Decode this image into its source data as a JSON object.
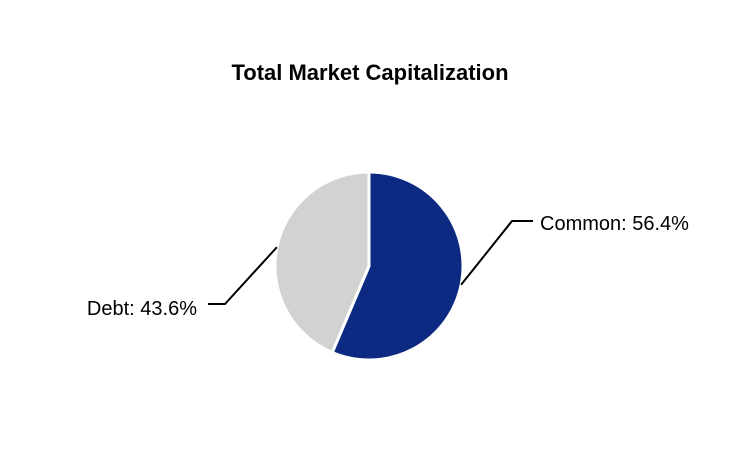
{
  "page": {
    "background_color": "#ffffff"
  },
  "chart_data": {
    "type": "pie",
    "title": "Total Market Capitalization",
    "title_color": "#000000",
    "label_color": "#000000",
    "leader_line_color": "#000000",
    "slice_separator_color": "#ffffff",
    "start_angle_deg": 0,
    "direction": "clockwise",
    "legend": "none",
    "slices": [
      {
        "label": "Common",
        "value": 56.4,
        "display": "Common: 56.4%",
        "color": "#0d2a83"
      },
      {
        "label": "Debt",
        "value": 43.6,
        "display": "Debt: 43.6%",
        "color": "#d2d2d0"
      }
    ]
  }
}
